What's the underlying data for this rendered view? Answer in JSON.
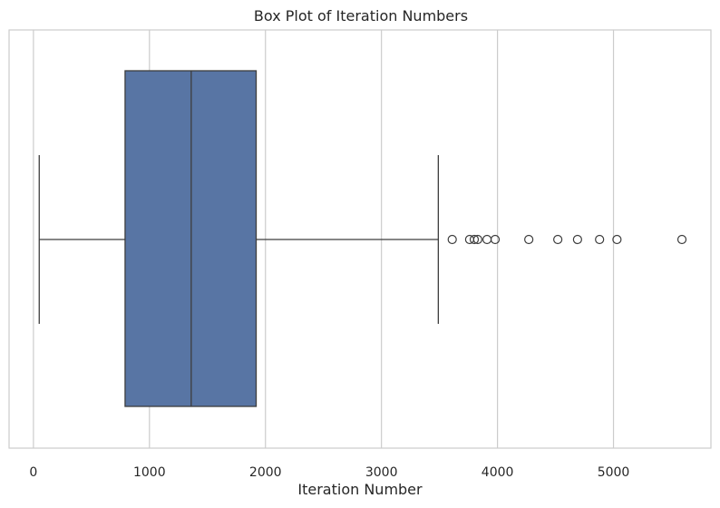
{
  "chart_data": {
    "type": "box",
    "title": "Box Plot of Iteration Numbers",
    "xlabel": "Iteration Number",
    "ylabel": "",
    "xlim": [
      -210,
      5840
    ],
    "xticks": [
      0,
      1000,
      2000,
      3000,
      4000,
      5000
    ],
    "xtick_labels": [
      "0",
      "1000",
      "2000",
      "3000",
      "4000",
      "5000"
    ],
    "grid": true,
    "box": {
      "whisker_low": 50,
      "q1": 790,
      "median": 1360,
      "q3": 1920,
      "whisker_high": 3490
    },
    "outliers": [
      3610,
      3760,
      3800,
      3830,
      3910,
      3980,
      4270,
      4520,
      4690,
      4880,
      5030,
      5590
    ],
    "colors": {
      "box_fill": "#5875a4",
      "line": "#3d3d3d",
      "grid": "#cccccc",
      "frame": "#cccccc"
    }
  }
}
